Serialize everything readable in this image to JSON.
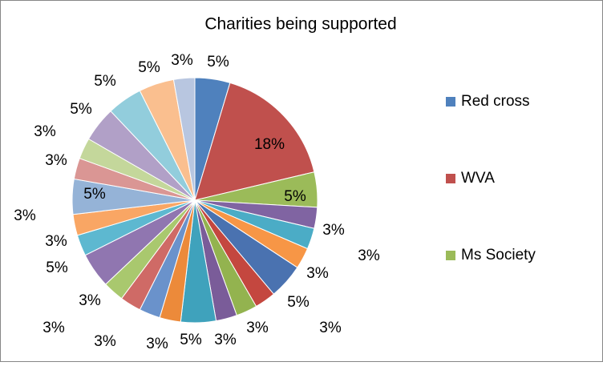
{
  "chart_data": {
    "type": "pie",
    "title": "Charities being supported",
    "categories": [
      "Red cross",
      "WVA",
      "Ms Society",
      null,
      null,
      null,
      null,
      null,
      null,
      null,
      null,
      null,
      null,
      null,
      null,
      null,
      null,
      null,
      null,
      null,
      null,
      null,
      null,
      null,
      null
    ],
    "values": [
      5,
      18,
      5,
      3,
      3,
      3,
      5,
      3,
      3,
      3,
      5,
      3,
      3,
      3,
      3,
      5,
      3,
      3,
      5,
      3,
      3,
      5,
      5,
      5,
      3
    ],
    "value_labels": [
      "5%",
      "18%",
      "5%",
      "3%",
      "3%",
      "3%",
      "5%",
      "3%",
      "3%",
      "3%",
      "5%",
      "3%",
      "3%",
      "3%",
      "3%",
      "5%",
      "3%",
      "3%",
      "5%",
      "3%",
      "3%",
      "5%",
      "5%",
      "5%",
      "3%"
    ],
    "colors": [
      "#4F81BD",
      "#C0504D",
      "#9BBB59",
      "#8064A2",
      "#4BACC6",
      "#F79646",
      "#4A72B0",
      "#C4473F",
      "#93B34F",
      "#7A5C99",
      "#3FA2BC",
      "#EC8A3A",
      "#6A92CB",
      "#CF6A66",
      "#A9C86E",
      "#9076B0",
      "#5DB8D0",
      "#F9A664",
      "#95B3D7",
      "#DA9694",
      "#C4D79B",
      "#B1A0C7",
      "#92CDDC",
      "#FABF8F",
      "#B8C6E0"
    ],
    "legend": "right"
  }
}
